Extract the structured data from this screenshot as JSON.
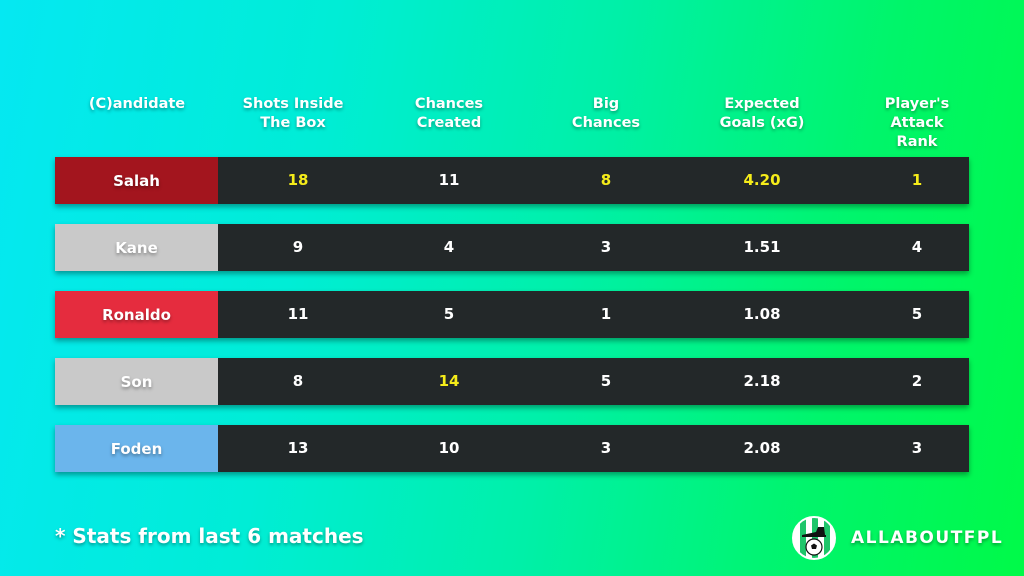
{
  "colors": {
    "row_bg": "#232829",
    "highlight": "#f5ec1a",
    "text": "#ffffff"
  },
  "header": {
    "columns": [
      "(C)andidate",
      "Shots Inside\nThe Box",
      "Chances\nCreated",
      "Big\nChances",
      "Expected\nGoals (xG)",
      "Player's\nAttack Rank"
    ]
  },
  "rows": [
    {
      "name": "Salah",
      "color": "#a3151e",
      "shots_inside_box": "18",
      "chances_created": "11",
      "big_chances": "8",
      "xg": "4.20",
      "attack_rank": "1"
    },
    {
      "name": "Kane",
      "color": "#c9c9c9",
      "shots_inside_box": "9",
      "chances_created": "4",
      "big_chances": "3",
      "xg": "1.51",
      "attack_rank": "4"
    },
    {
      "name": "Ronaldo",
      "color": "#e52c3e",
      "shots_inside_box": "11",
      "chances_created": "5",
      "big_chances": "1",
      "xg": "1.08",
      "attack_rank": "5"
    },
    {
      "name": "Son",
      "color": "#c9c9c9",
      "shots_inside_box": "8",
      "chances_created": "14",
      "big_chances": "5",
      "xg": "2.18",
      "attack_rank": "2"
    },
    {
      "name": "Foden",
      "color": "#6bb5ec",
      "shots_inside_box": "13",
      "chances_created": "10",
      "big_chances": "3",
      "xg": "2.08",
      "attack_rank": "3"
    }
  ],
  "highlights": [
    {
      "row": 0,
      "col": "shots_inside_box"
    },
    {
      "row": 0,
      "col": "big_chances"
    },
    {
      "row": 0,
      "col": "xg"
    },
    {
      "row": 0,
      "col": "attack_rank"
    },
    {
      "row": 3,
      "col": "chances_created"
    }
  ],
  "footer": {
    "note": "* Stats from last 6 matches",
    "brand": "ALLABOUTFPL",
    "logo_icon": "boot-and-football-logo"
  }
}
